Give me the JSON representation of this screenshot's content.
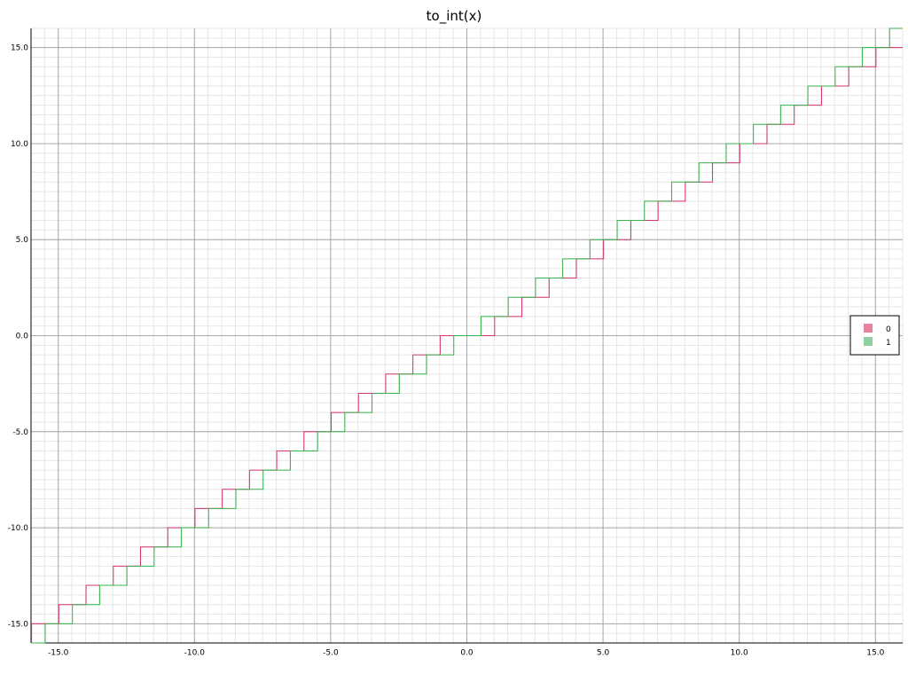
{
  "chart_data": {
    "type": "line",
    "title": "to_int(x)",
    "xlabel": "",
    "ylabel": "",
    "xlim": [
      -16,
      16
    ],
    "ylim": [
      -16,
      16
    ],
    "grid": true,
    "minor_grid": true,
    "x_ticks": [
      -15,
      -10,
      -5,
      0,
      5,
      10,
      15
    ],
    "x_tick_labels": [
      "-15.0",
      "-10.0",
      "-5.0",
      "0.0",
      "5.0",
      "10.0",
      "15.0"
    ],
    "y_ticks": [
      -15,
      -10,
      -5,
      0,
      5,
      10,
      15
    ],
    "y_tick_labels": [
      "-15.0",
      "-10.0",
      "-5.0",
      "0.0",
      "5.0",
      "10.0",
      "15.0"
    ],
    "legend_position": "right",
    "series": [
      {
        "name": "0",
        "color": "#d6336c",
        "legend_color": "#e8839f",
        "description_rule": "truncation toward zero: y = trunc(x)",
        "x_start": -16,
        "x_end": 16,
        "x_step": 0.02
      },
      {
        "name": "1",
        "color": "#37b24d",
        "legend_color": "#8fd19e",
        "description_rule": "round to nearest integer: y = round(x)",
        "x_start": -16,
        "x_end": 16,
        "x_step": 0.02
      }
    ]
  }
}
